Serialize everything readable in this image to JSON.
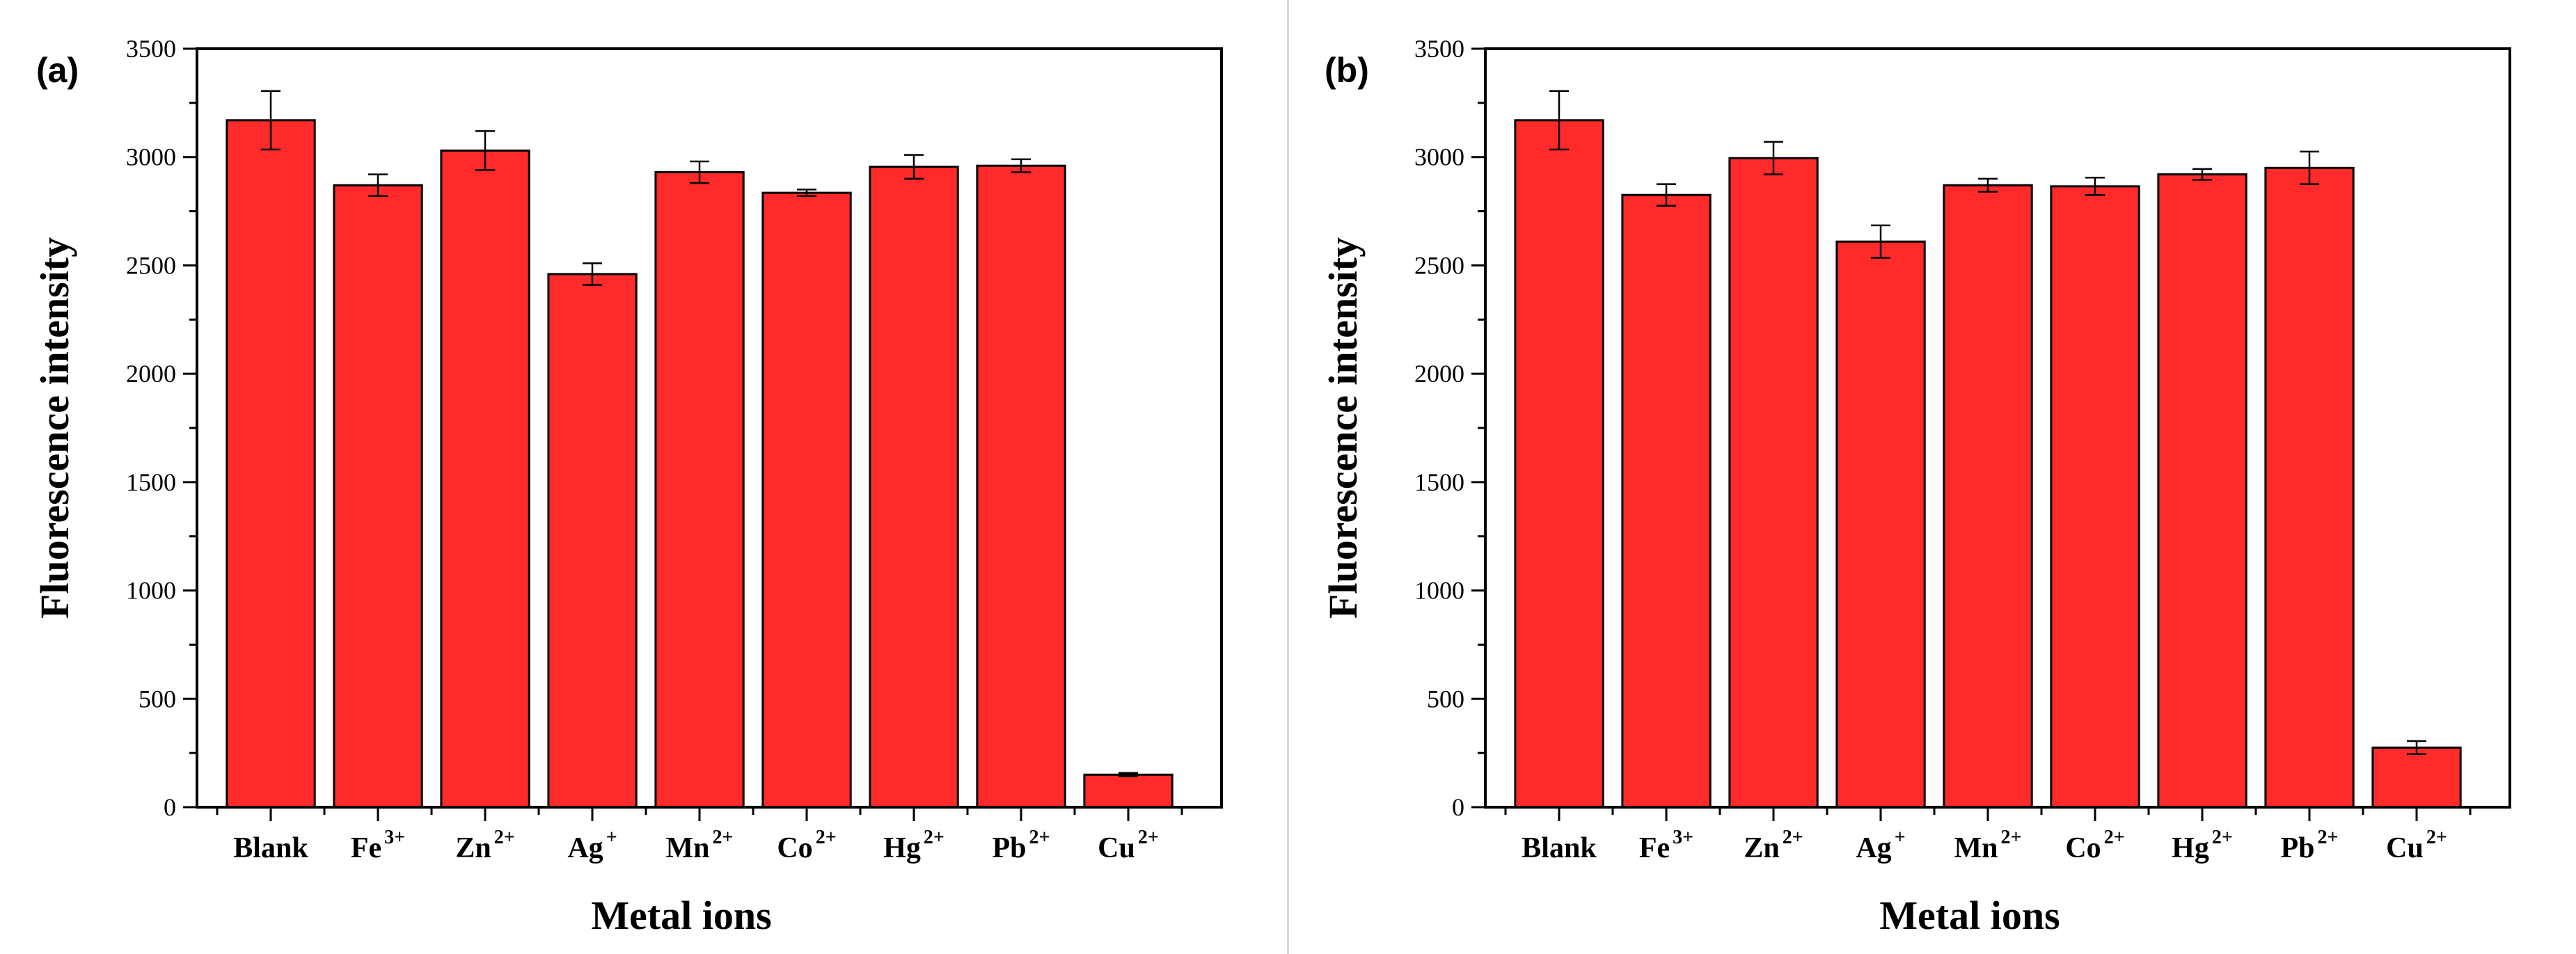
{
  "chart_data": [
    {
      "type": "bar",
      "title": "",
      "panel_label": "(a)",
      "xlabel": "Metal ions",
      "ylabel": "Fluorescence intensity",
      "ylim": [
        0,
        3500
      ],
      "yticks": [
        0,
        500,
        1000,
        1500,
        2000,
        2500,
        3000,
        3500
      ],
      "categories": [
        {
          "base": "Blank",
          "sup": ""
        },
        {
          "base": "Fe",
          "sup": "3+"
        },
        {
          "base": "Zn",
          "sup": "2+"
        },
        {
          "base": "Ag",
          "sup": "+"
        },
        {
          "base": "Mn",
          "sup": "2+"
        },
        {
          "base": "Co",
          "sup": "2+"
        },
        {
          "base": "Hg",
          "sup": "2+"
        },
        {
          "base": "Pb",
          "sup": "2+"
        },
        {
          "base": "Cu",
          "sup": "2+"
        }
      ],
      "values": [
        3170,
        2870,
        3030,
        2460,
        2930,
        2835,
        2955,
        2960,
        150
      ],
      "errors": [
        135,
        50,
        90,
        50,
        50,
        15,
        55,
        30,
        8
      ],
      "bar_color": "#ff2a2a",
      "grid": false
    },
    {
      "type": "bar",
      "title": "",
      "panel_label": "(b)",
      "xlabel": "Metal ions",
      "ylabel": "Fluorescence intensity",
      "ylim": [
        0,
        3500
      ],
      "yticks": [
        0,
        500,
        1000,
        1500,
        2000,
        2500,
        3000,
        3500
      ],
      "categories": [
        {
          "base": "Blank",
          "sup": ""
        },
        {
          "base": "Fe",
          "sup": "3+"
        },
        {
          "base": "Zn",
          "sup": "2+"
        },
        {
          "base": "Ag",
          "sup": "+"
        },
        {
          "base": "Mn",
          "sup": "2+"
        },
        {
          "base": "Co",
          "sup": "2+"
        },
        {
          "base": "Hg",
          "sup": "2+"
        },
        {
          "base": "Pb",
          "sup": "2+"
        },
        {
          "base": "Cu",
          "sup": "2+"
        }
      ],
      "values": [
        3170,
        2825,
        2995,
        2610,
        2870,
        2865,
        2920,
        2950,
        275
      ],
      "errors": [
        135,
        50,
        75,
        75,
        30,
        40,
        25,
        75,
        30
      ],
      "bar_color": "#ff2a2a",
      "grid": false
    }
  ]
}
